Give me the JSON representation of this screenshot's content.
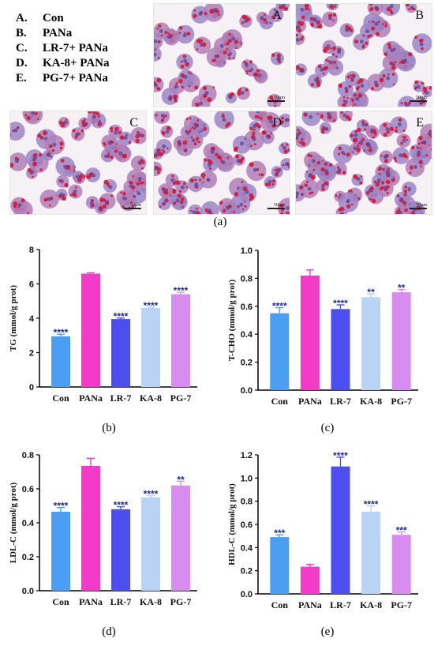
{
  "legend": [
    {
      "key": "A.",
      "label": "Con"
    },
    {
      "key": "B.",
      "label": "PANa"
    },
    {
      "key": "C.",
      "label": "LR-7+ PANa"
    },
    {
      "key": "D.",
      "label": "KA-8+ PANa"
    },
    {
      "key": "E.",
      "label": "PG-7+ PANa"
    }
  ],
  "panels": [
    {
      "label": "A",
      "scale": "50μm"
    },
    {
      "label": "B",
      "scale": "50μm"
    },
    {
      "label": "C",
      "scale": "50μm"
    },
    {
      "label": "D",
      "scale": "50μm"
    },
    {
      "label": "E",
      "scale": "50μm"
    }
  ],
  "captions": {
    "a": "(a)",
    "b": "(b)",
    "c": "(c)",
    "d": "(d)",
    "e": "(e)"
  },
  "colors": [
    "#4b9ef2",
    "#f23cc8",
    "#4d4ef0",
    "#b8d3f4",
    "#d98cf0"
  ],
  "chart_data": [
    {
      "type": "bar",
      "categories": [
        "Con",
        "PANa",
        "LR-7",
        "KA-8",
        "PG-7"
      ],
      "values": [
        2.95,
        6.6,
        3.95,
        4.6,
        5.4
      ],
      "errors": [
        0.12,
        0.05,
        0.07,
        0.05,
        0.12
      ],
      "significance": [
        "****",
        "",
        "****",
        "****",
        "****"
      ],
      "ylabel": "TG (mmol/g prot)",
      "ylim": [
        0,
        8
      ],
      "yticks": [
        0,
        2,
        4,
        6,
        8
      ],
      "ytick_labels": [
        "0",
        "2",
        "4",
        "6",
        "8"
      ]
    },
    {
      "type": "bar",
      "categories": [
        "Con",
        "PANa",
        "LR-7",
        "KA-8",
        "PG-7"
      ],
      "values": [
        0.55,
        0.82,
        0.58,
        0.665,
        0.7
      ],
      "errors": [
        0.04,
        0.04,
        0.03,
        0.025,
        0.02
      ],
      "significance": [
        "****",
        "",
        "****",
        "**",
        "**"
      ],
      "ylabel": "T-CHO (mmol/g prot)",
      "ylim": [
        0,
        1.0
      ],
      "yticks": [
        0,
        0.2,
        0.4,
        0.6,
        0.8,
        1.0
      ],
      "ytick_labels": [
        "0.0",
        "0.2",
        "0.4",
        "0.6",
        "0.8",
        "1.0"
      ]
    },
    {
      "type": "bar",
      "categories": [
        "Con",
        "PANa",
        "LR-7",
        "KA-8",
        "PG-7"
      ],
      "values": [
        0.465,
        0.735,
        0.48,
        0.55,
        0.62
      ],
      "errors": [
        0.025,
        0.045,
        0.015,
        0.01,
        0.025
      ],
      "significance": [
        "****",
        "",
        "****",
        "****",
        "**"
      ],
      "ylabel": "LDL-C (mmol/g prot)",
      "ylim": [
        0,
        0.8
      ],
      "yticks": [
        0,
        0.2,
        0.4,
        0.6,
        0.8
      ],
      "ytick_labels": [
        "0.0",
        "0.2",
        "0.4",
        "0.6",
        "0.8"
      ]
    },
    {
      "type": "bar",
      "categories": [
        "Con",
        "PANa",
        "LR-7",
        "KA-8",
        "PG-7"
      ],
      "values": [
        0.49,
        0.235,
        1.1,
        0.71,
        0.51
      ],
      "errors": [
        0.02,
        0.02,
        0.08,
        0.05,
        0.025
      ],
      "significance": [
        "***",
        "",
        "****",
        "****",
        "***"
      ],
      "ylabel": "HDL-C (mmol/g prot)",
      "ylim": [
        0,
        1.2
      ],
      "yticks": [
        0,
        0.2,
        0.4,
        0.6,
        0.8,
        1.0,
        1.2
      ],
      "ytick_labels": [
        "0.0",
        "0.2",
        "0.4",
        "0.6",
        "0.8",
        "1.0",
        "1.2"
      ]
    }
  ]
}
